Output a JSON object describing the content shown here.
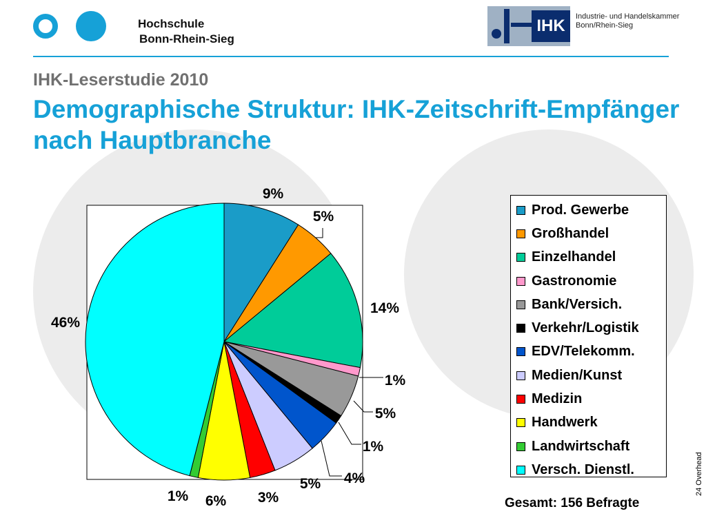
{
  "header": {
    "school_line1": "Hochschule",
    "school_line2": "Bonn-Rhein-Sieg",
    "ihk_logo_text": "IHK",
    "ihk_line1": "Industrie- und Handelskammer",
    "ihk_line2": "Bonn/Rhein-Sieg"
  },
  "slide": {
    "subtitle": "IHK-Leserstudie 2010",
    "title": "Demographische Struktur: IHK-Zeitschrift-Empfänger nach Hauptbranche",
    "total": "Gesamt: 156 Befragte",
    "page_number": "24",
    "page_label": "Overhead"
  },
  "colors": {
    "accent": "#16a1d7",
    "subtitle_gray": "#707070",
    "ihk_navy": "#0b2d6e"
  },
  "chart_data": {
    "type": "pie",
    "unit": "%",
    "legend_position": "right",
    "categories": [
      "Prod. Gewerbe",
      "Großhandel",
      "Einzelhandel",
      "Gastronomie",
      "Bank/Versich.",
      "Verkehr/Logistik",
      "EDV/Telekomm.",
      "Medien/Kunst",
      "Medizin",
      "Handwerk",
      "Landwirtschaft",
      "Versch. Dienstl."
    ],
    "values": [
      9,
      5,
      14,
      1,
      5,
      1,
      4,
      5,
      3,
      6,
      1,
      46
    ],
    "labels": [
      "9%",
      "5%",
      "14%",
      "1%",
      "5%",
      "1%",
      "4%",
      "5%",
      "3%",
      "6%",
      "1%",
      "46%"
    ],
    "colors": [
      "#1a9cc8",
      "#ff9900",
      "#00cc99",
      "#ff99cc",
      "#999999",
      "#000000",
      "#0055cc",
      "#ccccff",
      "#ff0000",
      "#ffff00",
      "#33cc33",
      "#00ffff"
    ]
  }
}
